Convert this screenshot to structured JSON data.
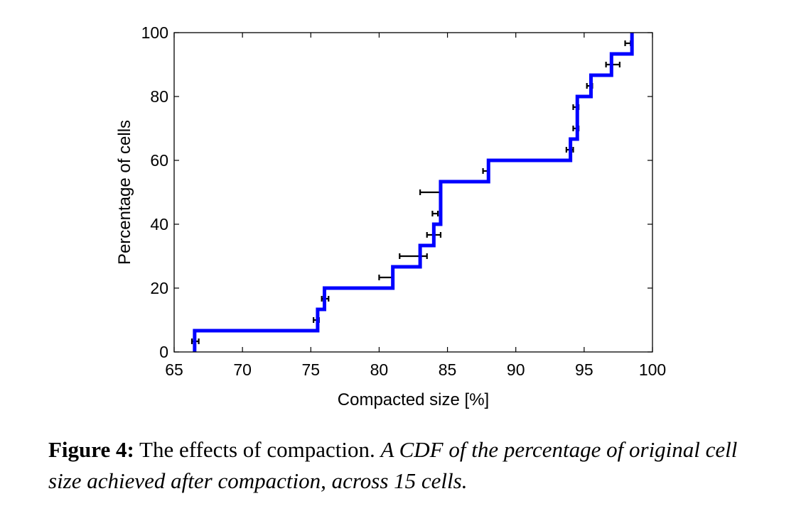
{
  "chart_data": {
    "type": "line",
    "subtype": "step-cdf-with-error-bars",
    "xlabel": "Compacted size [%]",
    "ylabel": "Percentage of cells",
    "xlim": [
      65,
      100
    ],
    "ylim": [
      0,
      100
    ],
    "xticks": [
      65,
      70,
      75,
      80,
      85,
      90,
      95,
      100
    ],
    "yticks": [
      0,
      20,
      40,
      60,
      80,
      100
    ],
    "grid": false,
    "line_color": "#0000ff",
    "errorbar_color": "#000000",
    "cdf_steps": {
      "x": [
        66.5,
        75.5,
        76.0,
        81.0,
        83.0,
        84.0,
        84.5,
        88.0,
        94.0,
        94.5,
        95.5,
        97.0,
        98.5
      ],
      "y": [
        6.67,
        13.33,
        20.0,
        26.67,
        33.33,
        40.0,
        53.33,
        60.0,
        66.67,
        80.0,
        86.67,
        93.33,
        100.0
      ]
    },
    "error_bars": [
      {
        "y": 3.33,
        "x_low": 66.3,
        "x_high": 66.8
      },
      {
        "y": 10.0,
        "x_low": 75.2,
        "x_high": 75.6
      },
      {
        "y": 16.67,
        "x_low": 75.8,
        "x_high": 76.3
      },
      {
        "y": 23.33,
        "x_low": 80.0,
        "x_high": 81.0
      },
      {
        "y": 30.0,
        "x_low": 81.5,
        "x_high": 83.5
      },
      {
        "y": 36.67,
        "x_low": 83.5,
        "x_high": 84.5
      },
      {
        "y": 43.33,
        "x_low": 83.9,
        "x_high": 84.3
      },
      {
        "y": 50.0,
        "x_low": 83.0,
        "x_high": 84.5
      },
      {
        "y": 56.67,
        "x_low": 87.6,
        "x_high": 88.0
      },
      {
        "y": 63.33,
        "x_low": 93.7,
        "x_high": 94.2
      },
      {
        "y": 70.0,
        "x_low": 94.2,
        "x_high": 94.6
      },
      {
        "y": 76.67,
        "x_low": 94.2,
        "x_high": 94.6
      },
      {
        "y": 83.33,
        "x_low": 95.2,
        "x_high": 95.6
      },
      {
        "y": 90.0,
        "x_low": 96.6,
        "x_high": 97.6
      },
      {
        "y": 96.67,
        "x_low": 98.0,
        "x_high": 98.4
      }
    ]
  },
  "caption": {
    "label": "Figure 4:",
    "title": "The effects of compaction.",
    "description": "A CDF of the percentage of original cell size achieved after compaction, across 15 cells."
  }
}
